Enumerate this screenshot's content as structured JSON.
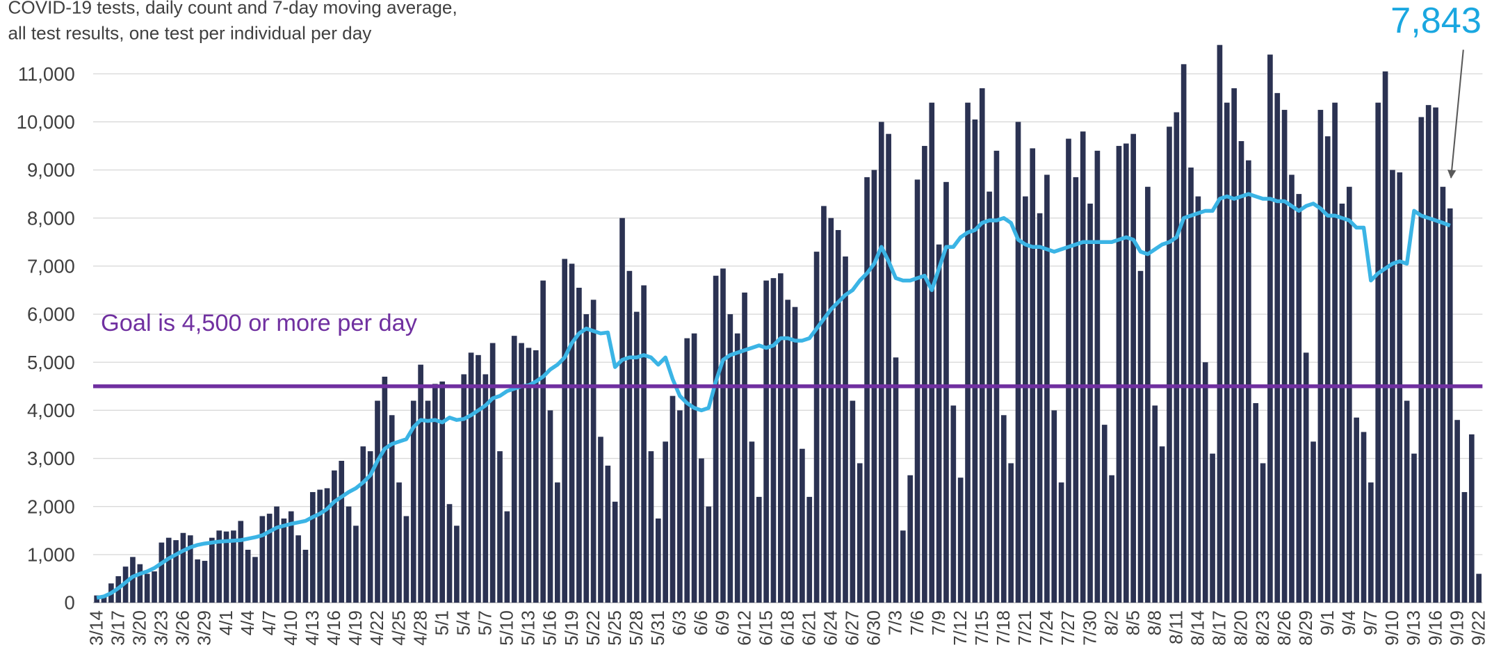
{
  "chart_data": {
    "type": "bar_line",
    "title": [
      "COVID-19 tests, daily count and 7-day moving average,",
      "all test results, one test per individual per day"
    ],
    "annotation": "7,843",
    "reference_line": {
      "value": 4500,
      "label": "Goal is 4,500 or more per day",
      "color": "#7030a0"
    },
    "categories": [
      "3/14",
      null,
      null,
      "3/17",
      null,
      null,
      "3/20",
      null,
      null,
      "3/23",
      null,
      null,
      "3/26",
      null,
      null,
      "3/29",
      null,
      null,
      "4/1",
      null,
      null,
      "4/4",
      null,
      null,
      "4/7",
      null,
      null,
      "4/10",
      null,
      null,
      "4/13",
      null,
      null,
      "4/16",
      null,
      null,
      "4/19",
      null,
      null,
      "4/22",
      null,
      null,
      "4/25",
      null,
      null,
      "4/28",
      null,
      null,
      "5/1",
      null,
      null,
      "5/4",
      null,
      null,
      "5/7",
      null,
      null,
      "5/10",
      null,
      null,
      "5/13",
      null,
      null,
      "5/16",
      null,
      null,
      "5/19",
      null,
      null,
      "5/22",
      null,
      null,
      "5/25",
      null,
      null,
      "5/28",
      null,
      null,
      "5/31",
      null,
      null,
      "6/3",
      null,
      null,
      "6/6",
      null,
      null,
      "6/9",
      null,
      null,
      "6/12",
      null,
      null,
      "6/15",
      null,
      null,
      "6/18",
      null,
      null,
      "6/21",
      null,
      null,
      "6/24",
      null,
      null,
      "6/27",
      null,
      null,
      "6/30",
      null,
      null,
      "7/3",
      null,
      null,
      "7/6",
      null,
      null,
      "7/9",
      null,
      null,
      "7/12",
      null,
      null,
      "7/15",
      null,
      null,
      "7/18",
      null,
      null,
      "7/21",
      null,
      null,
      "7/24",
      null,
      null,
      "7/27",
      null,
      null,
      "7/30",
      null,
      null,
      "8/2",
      null,
      null,
      "8/5",
      null,
      null,
      "8/8",
      null,
      null,
      "8/11",
      null,
      null,
      "8/14",
      null,
      null,
      "8/17",
      null,
      null,
      "8/20",
      null,
      null,
      "8/23",
      null,
      null,
      "8/26",
      null,
      null,
      "8/29",
      null,
      null,
      "9/1",
      null,
      null,
      "9/4",
      null,
      null,
      "9/7",
      null,
      null,
      "9/10",
      null,
      null,
      "9/13",
      null,
      null,
      "9/16",
      null,
      null,
      "9/19",
      null,
      null,
      "9/22"
    ],
    "series": [
      {
        "type": "bar",
        "color": "#2b3252",
        "values": [
          150,
          130,
          400,
          550,
          750,
          950,
          800,
          600,
          650,
          1250,
          1350,
          1300,
          1450,
          1400,
          900,
          870,
          1350,
          1500,
          1480,
          1500,
          1700,
          1100,
          950,
          1800,
          1850,
          2000,
          1750,
          1900,
          1400,
          1100,
          2300,
          2350,
          2380,
          2750,
          2950,
          2000,
          1600,
          3250,
          3150,
          4200,
          4700,
          3900,
          2500,
          1800,
          4200,
          4950,
          4200,
          4550,
          4600,
          2050,
          1600,
          4750,
          5200,
          5150,
          4750,
          5400,
          3150,
          1900,
          5550,
          5400,
          5300,
          5250,
          6700,
          4000,
          2500,
          7150,
          7050,
          6550,
          6000,
          6300,
          3450,
          2850,
          2100,
          8000,
          6900,
          6050,
          6600,
          3150,
          1750,
          3350,
          4300,
          4000,
          5500,
          5600,
          3000,
          2000,
          6800,
          6950,
          6000,
          5600,
          6450,
          3350,
          2200,
          6700,
          6750,
          6850,
          6300,
          6150,
          3200,
          2200,
          7300,
          8250,
          8000,
          7750,
          7200,
          4200,
          2900,
          8850,
          9000,
          10000,
          9750,
          5100,
          1500,
          2650,
          8800,
          9500,
          10400,
          7450,
          8750,
          4100,
          2600,
          10400,
          10050,
          10700,
          8550,
          9400,
          3900,
          2900,
          10000,
          8450,
          9450,
          8100,
          8900,
          4000,
          2500,
          9650,
          8850,
          9800,
          8300,
          9400,
          3700,
          2650,
          9500,
          9550,
          9750,
          6900,
          8650,
          4100,
          3250,
          9900,
          10200,
          11200,
          9050,
          8450,
          5000,
          3100,
          11600,
          10400,
          10700,
          9600,
          9200,
          4150,
          2900,
          11400,
          10600,
          10250,
          8900,
          8500,
          5200,
          3350,
          10250,
          9700,
          10400,
          8300,
          8650,
          3850,
          3550,
          2500,
          10400,
          11050,
          9000,
          8950,
          4200,
          3100,
          10100,
          10350,
          10300,
          8650,
          8200,
          3800,
          2300,
          3500,
          600
        ]
      },
      {
        "type": "line",
        "color": "#3bb4e5",
        "values": [
          100,
          130,
          200,
          300,
          420,
          540,
          600,
          650,
          720,
          820,
          920,
          1000,
          1080,
          1150,
          1200,
          1230,
          1250,
          1270,
          1280,
          1290,
          1300,
          1330,
          1360,
          1400,
          1480,
          1560,
          1600,
          1640,
          1670,
          1700,
          1780,
          1850,
          1950,
          2100,
          2200,
          2300,
          2380,
          2500,
          2650,
          2950,
          3200,
          3300,
          3350,
          3400,
          3650,
          3800,
          3780,
          3800,
          3750,
          3850,
          3800,
          3820,
          3900,
          4000,
          4100,
          4250,
          4300,
          4400,
          4450,
          4500,
          4520,
          4600,
          4700,
          4850,
          4950,
          5100,
          5400,
          5600,
          5700,
          5650,
          5600,
          5620,
          4900,
          5050,
          5100,
          5100,
          5150,
          5100,
          4950,
          5100,
          4650,
          4300,
          4150,
          4050,
          4000,
          4050,
          4600,
          5050,
          5150,
          5200,
          5250,
          5300,
          5350,
          5300,
          5350,
          5500,
          5500,
          5450,
          5450,
          5500,
          5700,
          5900,
          6100,
          6250,
          6400,
          6500,
          6700,
          6850,
          7050,
          7400,
          7100,
          6750,
          6700,
          6700,
          6750,
          6800,
          6500,
          6950,
          7400,
          7400,
          7600,
          7700,
          7750,
          7900,
          7950,
          7950,
          8000,
          7900,
          7550,
          7450,
          7400,
          7400,
          7350,
          7300,
          7350,
          7400,
          7450,
          7500,
          7500,
          7500,
          7500,
          7500,
          7550,
          7600,
          7550,
          7300,
          7250,
          7350,
          7450,
          7500,
          7600,
          8000,
          8050,
          8100,
          8150,
          8150,
          8400,
          8450,
          8400,
          8450,
          8500,
          8450,
          8400,
          8400,
          8350,
          8350,
          8250,
          8150,
          8250,
          8300,
          8200,
          8050,
          8050,
          8000,
          7950,
          7800,
          7800,
          6700,
          6850,
          6950,
          7050,
          7100,
          7050,
          8150,
          8050,
          8000,
          7950,
          7900,
          7843,
          null,
          null,
          null,
          null
        ]
      }
    ],
    "ylim": [
      0,
      11600
    ],
    "yticks": [
      0,
      {
        "value": 1000,
        "label": "1,000"
      },
      {
        "value": 2000,
        "label": "2,000"
      },
      {
        "value": 3000,
        "label": "3,000"
      },
      {
        "value": 4000,
        "label": "4,000"
      },
      {
        "value": 5000,
        "label": "5,000"
      },
      {
        "value": 6000,
        "label": "6,000"
      },
      {
        "value": 7000,
        "label": "7,000"
      },
      {
        "value": 8000,
        "label": "8,000"
      },
      {
        "value": 9000,
        "label": "9,000"
      },
      {
        "value": 10000,
        "label": "10,000"
      },
      {
        "value": 11000,
        "label": "11,000"
      }
    ],
    "grid": true
  }
}
